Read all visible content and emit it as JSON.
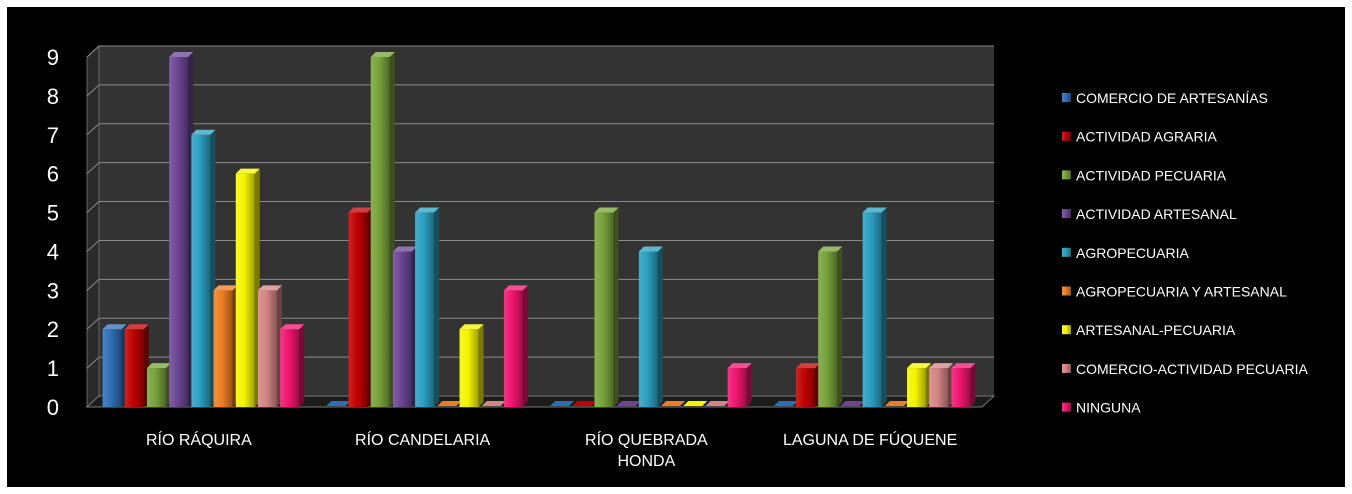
{
  "chart_data": {
    "type": "bar",
    "title": "",
    "xlabel": "",
    "ylabel": "",
    "ylim": [
      0,
      9
    ],
    "y_ticks": [
      "0",
      "1",
      "2",
      "3",
      "4",
      "5",
      "6",
      "7",
      "8",
      "9"
    ],
    "grid": true,
    "legend_position": "right",
    "background": "#000000",
    "categories": [
      [
        "RÍO RÁQUIRA"
      ],
      [
        "RÍO CANDELARIA"
      ],
      [
        "RÍO QUEBRADA",
        "HONDA"
      ],
      [
        "LAGUNA DE FÚQUENE"
      ]
    ],
    "series": [
      {
        "name": "COMERCIO DE ARTESANÍAS",
        "color": "#2e6db5",
        "values": [
          2,
          0,
          0,
          0
        ]
      },
      {
        "name": "ACTIVIDAD AGRARIA",
        "color": "#c00000",
        "values": [
          2,
          5,
          0,
          1
        ]
      },
      {
        "name": "ACTIVIDAD PECUARIA",
        "color": "#77a23a",
        "values": [
          1,
          9,
          5,
          4
        ]
      },
      {
        "name": "ACTIVIDAD ARTESANAL",
        "color": "#6b4593",
        "values": [
          9,
          4,
          0,
          0
        ]
      },
      {
        "name": "AGROPECUARIA",
        "color": "#2a9fbf",
        "values": [
          7,
          5,
          4,
          5
        ]
      },
      {
        "name": "AGROPECUARIA Y ARTESANAL",
        "color": "#ed7d21",
        "values": [
          3,
          0,
          0,
          0
        ]
      },
      {
        "name": "ARTESANAL-PECUARIA",
        "color": "#f4f400",
        "values": [
          6,
          2,
          0,
          1
        ]
      },
      {
        "name": "COMERCIO-ACTIVIDAD PECUARIA",
        "color": "#d48484",
        "values": [
          3,
          0,
          0,
          1
        ]
      },
      {
        "name": "NINGUNA",
        "color": "#f0146e",
        "values": [
          2,
          3,
          1,
          1
        ]
      }
    ]
  }
}
